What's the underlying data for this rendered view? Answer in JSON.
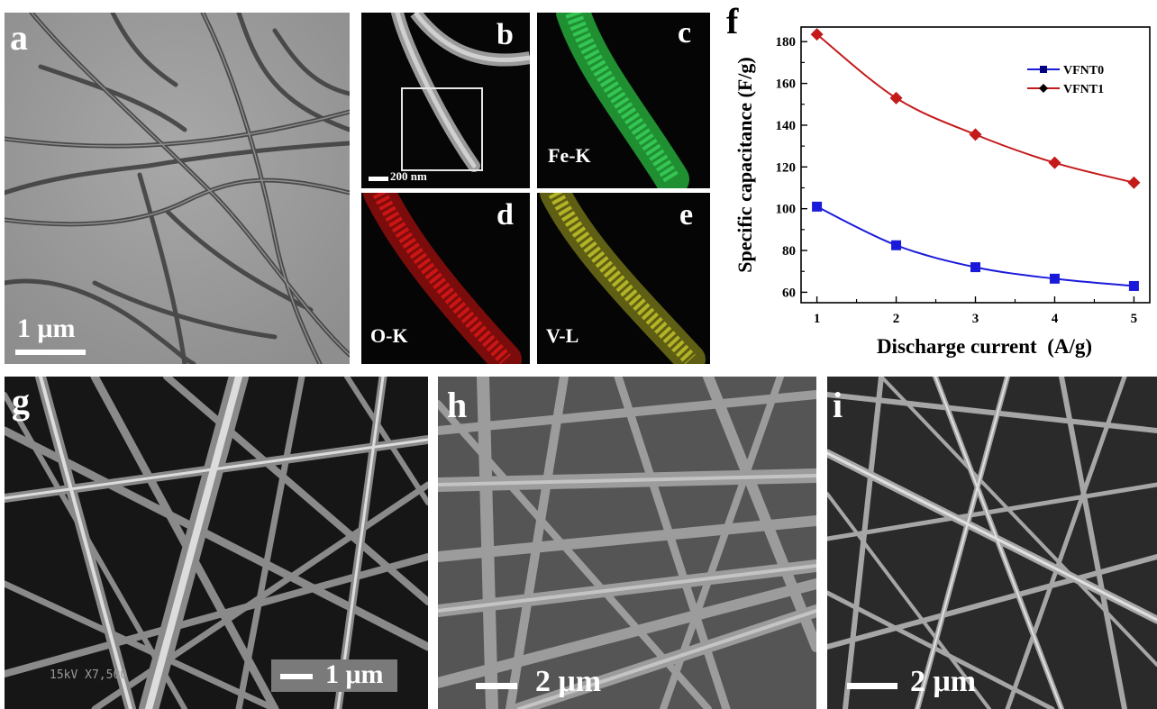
{
  "panels": {
    "a": {
      "label": "a",
      "scale": "1 μm"
    },
    "b": {
      "label": "b",
      "scale": "200 nm"
    },
    "c": {
      "label": "c",
      "element": "Fe-K",
      "color": "#2bd14a"
    },
    "d": {
      "label": "d",
      "element": "O-K",
      "color": "#e01818"
    },
    "e": {
      "label": "e",
      "element": "V-L",
      "color": "#c8c82a"
    },
    "f": {
      "label": "f"
    },
    "g": {
      "label": "g",
      "scale": "1 μm",
      "instrument_text": "15kV X7,500"
    },
    "h": {
      "label": "h",
      "scale": "2 μm"
    },
    "i": {
      "label": "i",
      "scale": "2 μm"
    }
  },
  "chart_data": {
    "type": "line",
    "xlabel": "Discharge current  (A/g)",
    "ylabel": "Specific capacitance (F/g)",
    "x": [
      1,
      2,
      3,
      4,
      5
    ],
    "xlim": [
      0.8,
      5.2
    ],
    "ylim": [
      55,
      187
    ],
    "xticks": [
      1,
      2,
      3,
      4,
      5
    ],
    "yticks": [
      60,
      80,
      100,
      120,
      140,
      160,
      180
    ],
    "legend_position": "top-right",
    "series": [
      {
        "name": "VFNT0",
        "values": [
          101,
          82.5,
          72,
          66.5,
          63
        ],
        "color": "#1a1adb",
        "marker": "square"
      },
      {
        "name": "VFNT1",
        "values": [
          183.5,
          153,
          135.5,
          122,
          112.5
        ],
        "color": "#c41a1a",
        "marker": "diamond"
      }
    ]
  }
}
